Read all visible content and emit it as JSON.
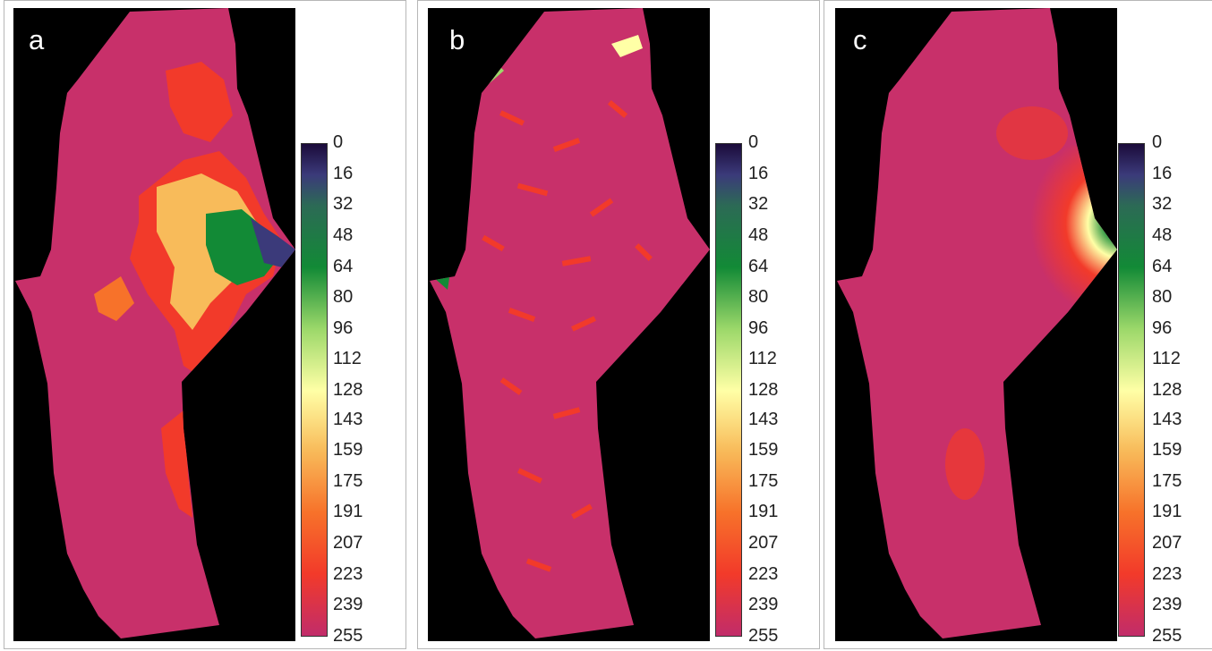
{
  "figure": {
    "panels": [
      {
        "id": "a",
        "label": "a"
      },
      {
        "id": "b",
        "label": "b"
      },
      {
        "id": "c",
        "label": "c"
      }
    ],
    "legend": {
      "ticks": [
        "0",
        "16",
        "32",
        "48",
        "64",
        "80",
        "96",
        "112",
        "128",
        "143",
        "159",
        "175",
        "191",
        "207",
        "223",
        "239",
        "255"
      ],
      "color_stops": [
        {
          "value": 0,
          "color": "#1b0b3a"
        },
        {
          "value": 16,
          "color": "#3b3a7a"
        },
        {
          "value": 32,
          "color": "#2c6a55"
        },
        {
          "value": 64,
          "color": "#128a36"
        },
        {
          "value": 96,
          "color": "#9cd86a"
        },
        {
          "value": 128,
          "color": "#ffffa6"
        },
        {
          "value": 159,
          "color": "#f8bb5a"
        },
        {
          "value": 191,
          "color": "#f7722a"
        },
        {
          "value": 223,
          "color": "#f23a2a"
        },
        {
          "value": 255,
          "color": "#c12c6a"
        }
      ]
    },
    "colors": {
      "background": "#000000",
      "base_land": "#c8306a"
    }
  }
}
